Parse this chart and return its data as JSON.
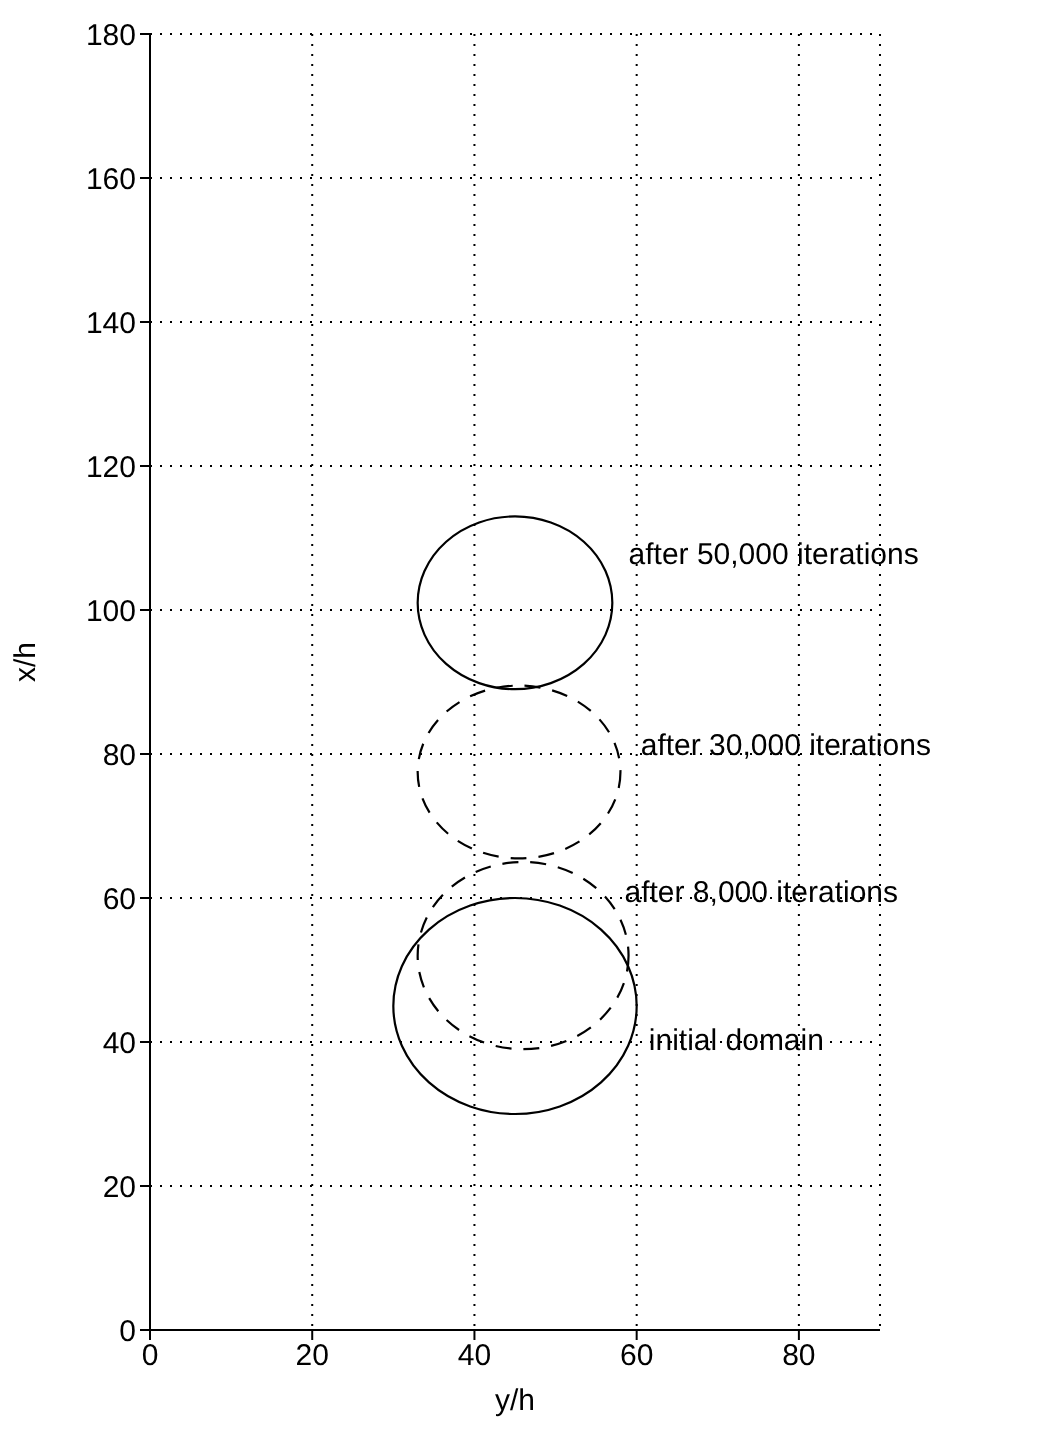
{
  "chart_data": {
    "type": "line",
    "xlabel": "y/h",
    "ylabel": "x/h",
    "xlim": [
      0,
      90
    ],
    "ylim": [
      0,
      180
    ],
    "xticks": [
      0,
      20,
      40,
      60,
      80
    ],
    "yticks": [
      0,
      20,
      40,
      60,
      80,
      100,
      120,
      140,
      160,
      180
    ],
    "grid": true,
    "annotations": [
      "initial domain",
      "after 8,000 iterations",
      "after 30,000 iterations",
      "after 50,000 iterations"
    ]
  }
}
